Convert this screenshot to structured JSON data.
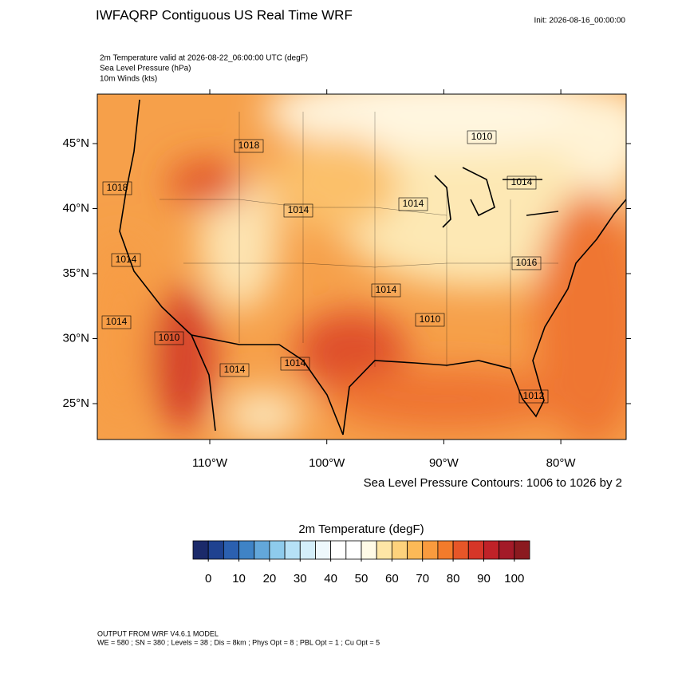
{
  "header": {
    "title": "IWFAQRP Contiguous US Real Time WRF",
    "init": "Init: 2026-08-16_00:00:00",
    "subtitle_lines": [
      "2m Temperature valid at 2026-08-22_06:00:00 UTC   (degF)",
      "Sea Level Pressure   (hPa)",
      "10m Winds   (kts)"
    ]
  },
  "map": {
    "lat_ticks": [
      {
        "value": 45,
        "label": "45°N"
      },
      {
        "value": 40,
        "label": "40°N"
      },
      {
        "value": 35,
        "label": "35°N"
      },
      {
        "value": 30,
        "label": "30°N"
      },
      {
        "value": 25,
        "label": "25°N"
      }
    ],
    "lon_ticks": [
      {
        "value": -110,
        "label": "110°W"
      },
      {
        "value": -100,
        "label": "100°W"
      },
      {
        "value": -90,
        "label": "90°W"
      },
      {
        "value": -80,
        "label": "80°W"
      }
    ],
    "contour_labels": [
      "1010",
      "1014",
      "1014",
      "1014",
      "1018",
      "1014",
      "1014",
      "1016",
      "1014",
      "1010",
      "1014",
      "1014",
      "1018",
      "1010",
      "1012"
    ],
    "contour_note": "Sea Level Pressure Contours: 1006 to 1026 by 2"
  },
  "colorbar": {
    "title": "2m Temperature  (degF)",
    "colors": [
      "#1b2a6a",
      "#1f4290",
      "#2b60b0",
      "#3f83c6",
      "#63a7da",
      "#8ecbec",
      "#b6e1f6",
      "#d4eef9",
      "#eef8fc",
      "#ffffff",
      "#ffffff",
      "#fffae6",
      "#fee6a6",
      "#fdd27c",
      "#fcb957",
      "#f99b3e",
      "#f37b2b",
      "#e75628",
      "#d63628",
      "#c02228",
      "#a31a28",
      "#8b1a1f"
    ],
    "ticks": [
      0,
      10,
      20,
      30,
      40,
      50,
      60,
      70,
      80,
      90,
      100
    ]
  },
  "footer": {
    "lines": [
      "OUTPUT FROM WRF V4.6.1 MODEL",
      "WE = 580 ; SN = 380 ; Levels = 38 ; Dis = 8km ; Phys Opt = 8 ; PBL Opt = 1 ; Cu Opt = 5"
    ]
  }
}
